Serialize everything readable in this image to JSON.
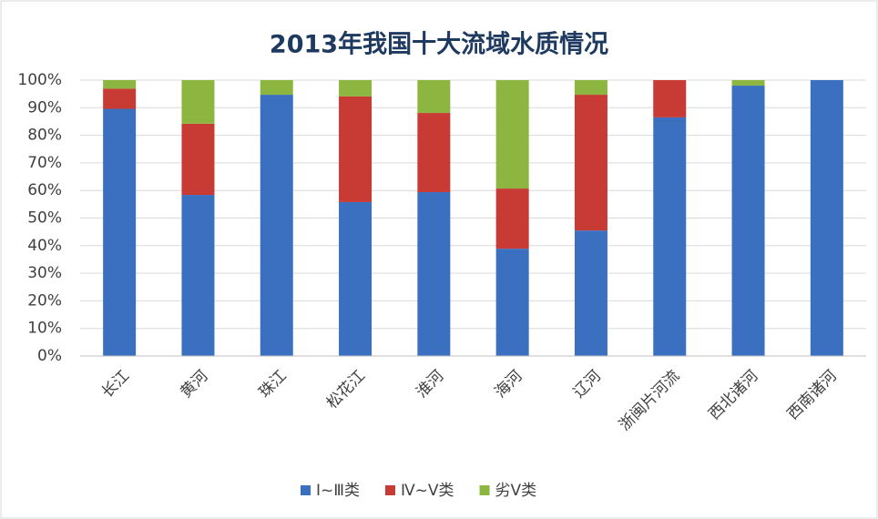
{
  "chart_data": {
    "type": "stacked_bar",
    "title": "2013年我国十大流域水质情况",
    "categories": [
      "长江",
      "黄河",
      "珠江",
      "松花江",
      "淮河",
      "海河",
      "辽河",
      "浙闽片河流",
      "西北诸河",
      "西南诸河"
    ],
    "series": [
      {
        "name": "Ⅰ~Ⅲ类",
        "color": "#3b70c0",
        "values": [
          89.6,
          58.4,
          94.7,
          55.8,
          59.4,
          38.9,
          45.5,
          86.5,
          98,
          100
        ]
      },
      {
        "name": "Ⅳ~Ⅴ类",
        "color": "#c83a34",
        "values": [
          7.3,
          25.8,
          0,
          38.3,
          28.7,
          21.8,
          49.2,
          13.5,
          0,
          0
        ]
      },
      {
        "name": "劣Ⅴ类",
        "color": "#8db640",
        "values": [
          3.1,
          15.8,
          5.3,
          5.9,
          11.9,
          39.3,
          5.3,
          0,
          2,
          0
        ]
      }
    ],
    "ylim": [
      0,
      100
    ],
    "yticks": [
      {
        "value": 0,
        "label": "0%"
      },
      {
        "value": 10,
        "label": "10%"
      },
      {
        "value": 20,
        "label": "20%"
      },
      {
        "value": 30,
        "label": "30%"
      },
      {
        "value": 40,
        "label": "40%"
      },
      {
        "value": 50,
        "label": "50%"
      },
      {
        "value": 60,
        "label": "60%"
      },
      {
        "value": 70,
        "label": "70%"
      },
      {
        "value": 80,
        "label": "80%"
      },
      {
        "value": 90,
        "label": "90%"
      },
      {
        "value": 100,
        "label": "100%"
      }
    ],
    "grid": true,
    "legend": "bottom"
  }
}
